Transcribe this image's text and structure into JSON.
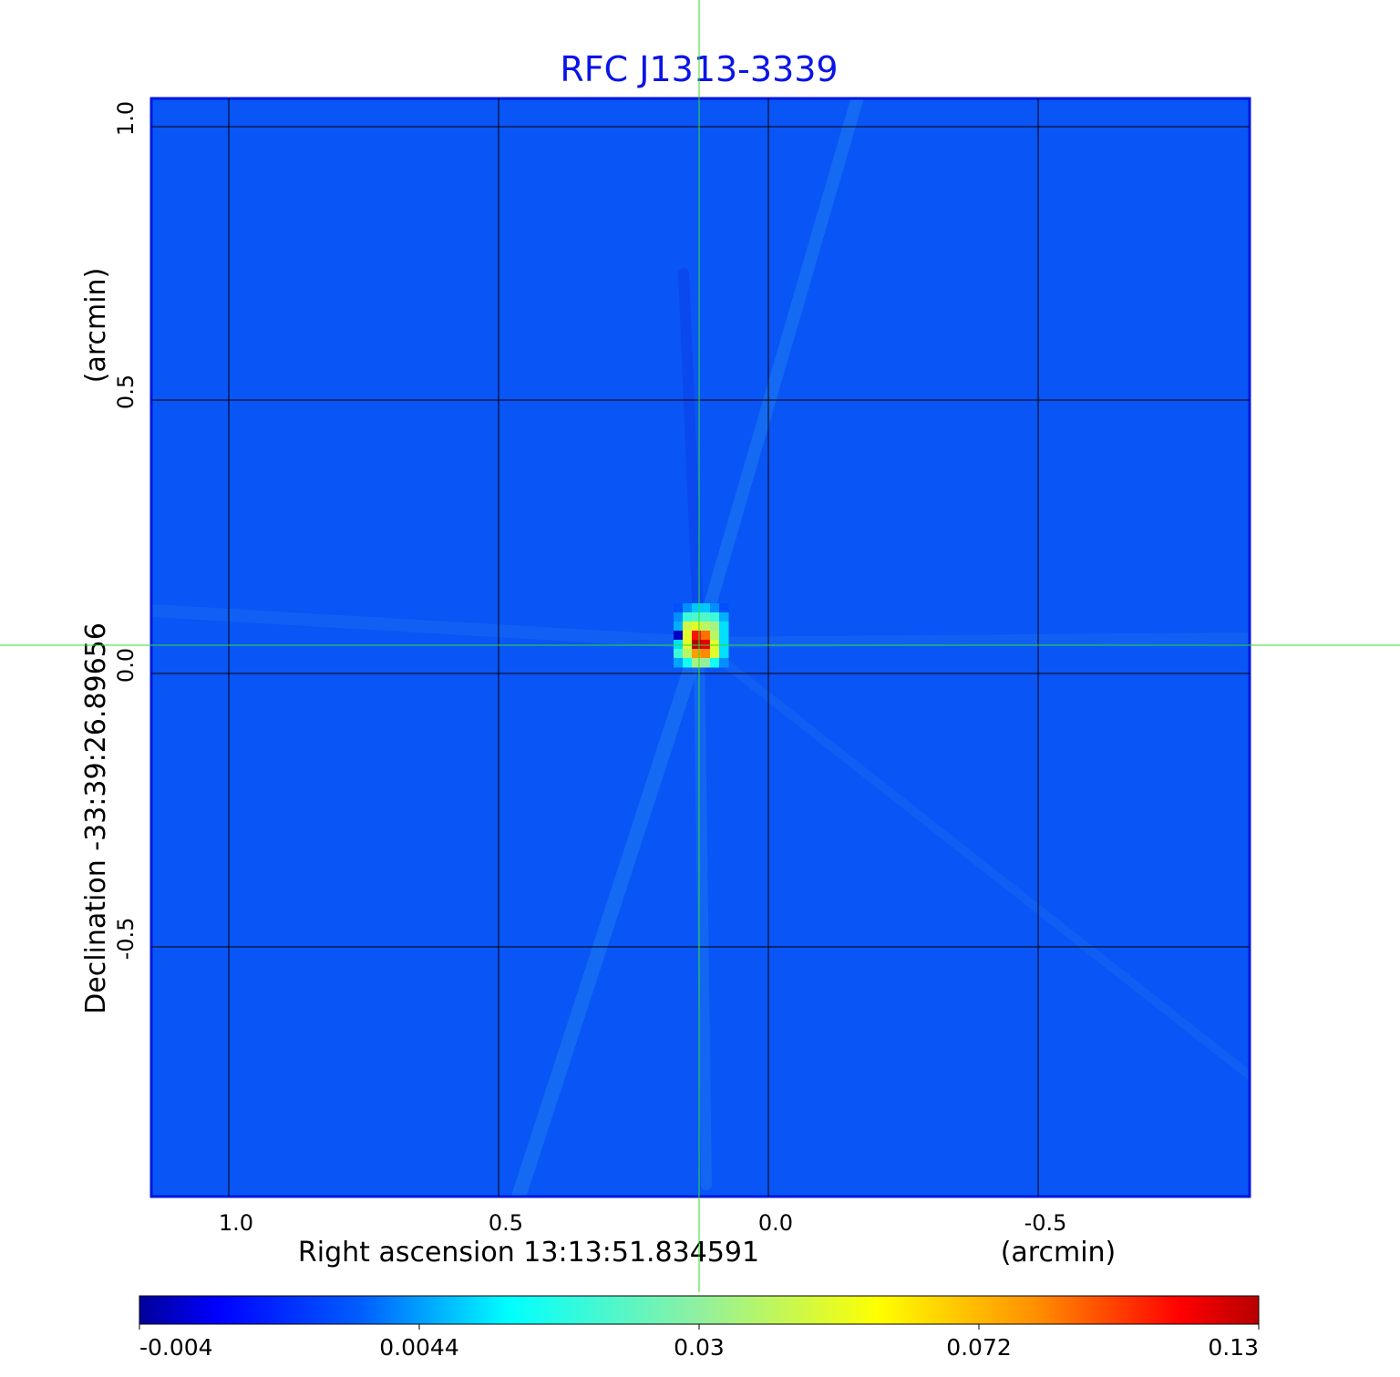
{
  "chart_data": {
    "type": "heatmap",
    "title": "RFC J1313-3339",
    "title_color": "#0a14e6",
    "xlabel": "Right ascension  13:13:51.834591",
    "xunit": "(arcmin)",
    "ylabel": "Declination  -33:39:26.89656",
    "yunit": "(arcmin)",
    "xlim": [
      1.14,
      -0.9
    ],
    "ylim": [
      -1.0,
      1.05
    ],
    "x_ticks": [
      1.0,
      0.5,
      0.0,
      -0.5
    ],
    "x_tick_labels": [
      "1.0",
      "0.5",
      "0.0",
      "-0.5"
    ],
    "y_ticks": [
      1.0,
      0.5,
      0.0,
      -0.5
    ],
    "y_tick_labels": [
      "1.0",
      "0.5",
      "0.0",
      "-0.5"
    ],
    "grid": true,
    "crosshair": {
      "x": 0.128,
      "y": 0.05,
      "color": "#33dd33"
    },
    "colormap": "jet",
    "colorbar": {
      "placement": "bottom",
      "ticks": [
        -0.004,
        0.0044,
        0.03,
        0.072,
        0.13
      ],
      "tick_labels": [
        "-0.004",
        "0.0044",
        "0.03",
        "0.072",
        "0.13"
      ]
    },
    "background_value": 0.0,
    "peak_region": {
      "values": [
        [
          0.002,
          0.004,
          0.008,
          0.008,
          0.004,
          0.002
        ],
        [
          0.004,
          0.02,
          0.022,
          0.022,
          0.02,
          0.006
        ],
        [
          0.006,
          0.045,
          0.05,
          0.04,
          0.035,
          0.01
        ],
        [
          -0.003,
          0.05,
          0.11,
          0.09,
          0.04,
          0.01
        ],
        [
          0.01,
          0.05,
          0.13,
          0.12,
          0.05,
          0.01
        ],
        [
          0.02,
          0.04,
          0.08,
          0.085,
          0.05,
          0.01
        ],
        [
          0.005,
          0.015,
          0.035,
          0.03,
          0.015,
          0.004
        ]
      ]
    }
  }
}
